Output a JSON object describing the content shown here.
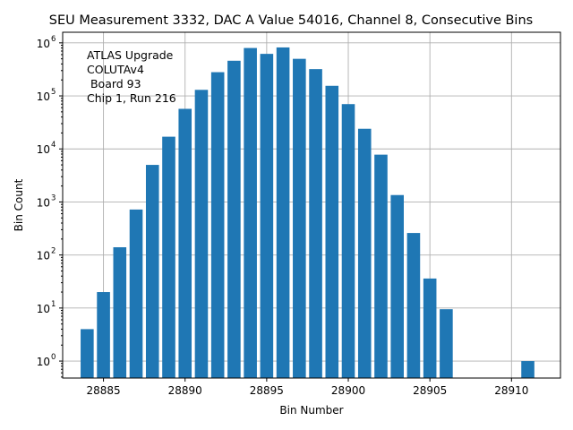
{
  "chart_data": {
    "type": "bar",
    "title": "SEU Measurement 3332, DAC A Value 54016, Channel 8, Consecutive Bins",
    "xlabel": "Bin Number",
    "ylabel": "Bin Count",
    "yscale": "log",
    "xlim": [
      28882.5,
      28913.0
    ],
    "ylim_exp": [
      -0.32,
      6.2
    ],
    "grid": true,
    "bar_color": "#1f77b4",
    "x_ticks": [
      28885,
      28890,
      28895,
      28900,
      28905,
      28910
    ],
    "x_tick_labels": [
      "28885",
      "28890",
      "28895",
      "28900",
      "28905",
      "28910"
    ],
    "y_ticks_exp": [
      0,
      1,
      2,
      3,
      4,
      5,
      6
    ],
    "y_tick_base": "10",
    "y_tick_exponents": [
      "0",
      "1",
      "2",
      "3",
      "4",
      "5",
      "6"
    ],
    "annotation": [
      "ATLAS Upgrade",
      "COLUTAv4",
      " Board 93",
      "Chip 1, Run 216"
    ],
    "x": [
      28884,
      28885,
      28886,
      28887,
      28888,
      28889,
      28890,
      28891,
      28892,
      28893,
      28894,
      28895,
      28896,
      28897,
      28898,
      28899,
      28900,
      28901,
      28902,
      28903,
      28904,
      28905,
      28906,
      28911
    ],
    "values": [
      4,
      20,
      140,
      720,
      5000,
      17000,
      57000,
      130000,
      280000,
      460000,
      800000,
      620000,
      820000,
      500000,
      320000,
      155000,
      70000,
      24000,
      7800,
      1350,
      260,
      36,
      9.5,
      1
    ]
  }
}
